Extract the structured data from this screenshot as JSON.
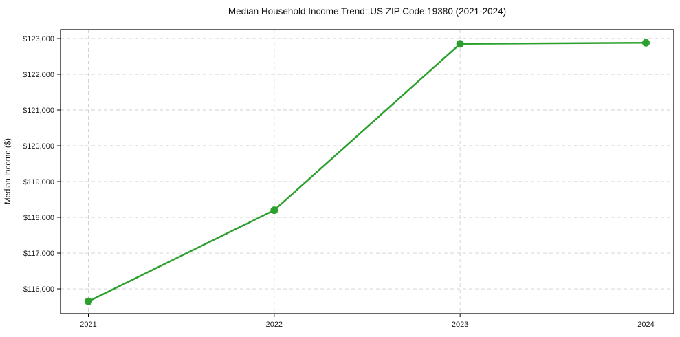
{
  "chart_data": {
    "type": "line",
    "title": "Median Household Income Trend: US ZIP Code 19380 (2021-2024)",
    "xlabel": "",
    "ylabel": "Median Income ($)",
    "categories": [
      "2021",
      "2022",
      "2023",
      "2024"
    ],
    "series": [
      {
        "name": "Median Household Income",
        "values": [
          115650,
          118200,
          122850,
          122880
        ],
        "color": "#2ca02c"
      }
    ],
    "ylim": [
      115308,
      123250
    ],
    "yticks": [
      116000,
      117000,
      118000,
      119000,
      120000,
      121000,
      122000,
      123000
    ],
    "ytick_labels": [
      "$116,000",
      "$117,000",
      "$118,000",
      "$119,000",
      "$120,000",
      "$121,000",
      "$122,000",
      "$123,000"
    ],
    "grid": "dashed",
    "legend_position": "none"
  },
  "colors": {
    "line": "#2ca02c",
    "grid": "#cfcfcf",
    "axis": "#000000",
    "tick_text": "#1a1a1a",
    "background": "#ffffff"
  }
}
